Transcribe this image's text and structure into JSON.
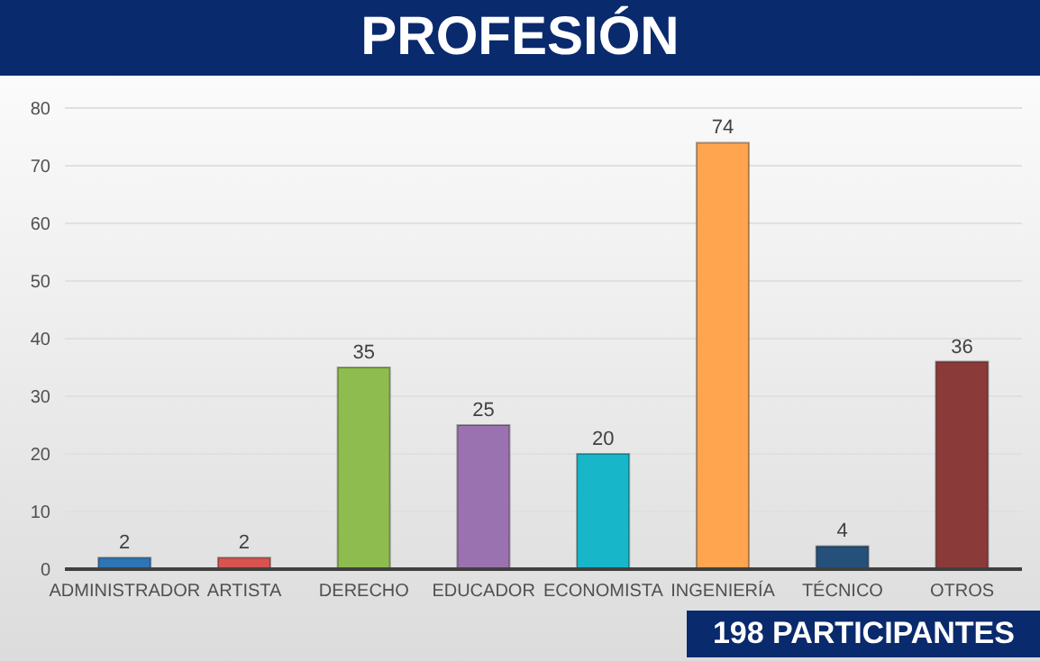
{
  "chart_data": {
    "type": "bar",
    "title": "PROFESIÓN",
    "categories": [
      "ADMINISTRADOR",
      "ARTISTA",
      "DERECHO",
      "EDUCADOR",
      "ECONOMISTA",
      "INGENIERÍA",
      "TÉCNICO",
      "OTROS"
    ],
    "values": [
      2,
      2,
      35,
      25,
      20,
      74,
      4,
      36
    ],
    "colors": [
      "#2e75b6",
      "#d9534f",
      "#8fbc4f",
      "#9b72b0",
      "#17b6c9",
      "#ffa54f",
      "#24507a",
      "#8b3a3a"
    ],
    "ylim": [
      0,
      80
    ],
    "yticks": [
      0,
      10,
      20,
      30,
      40,
      50,
      60,
      70,
      80
    ],
    "grid": "y",
    "data_labels": true,
    "annotations": [
      "198 PARTICIPANTES"
    ]
  }
}
